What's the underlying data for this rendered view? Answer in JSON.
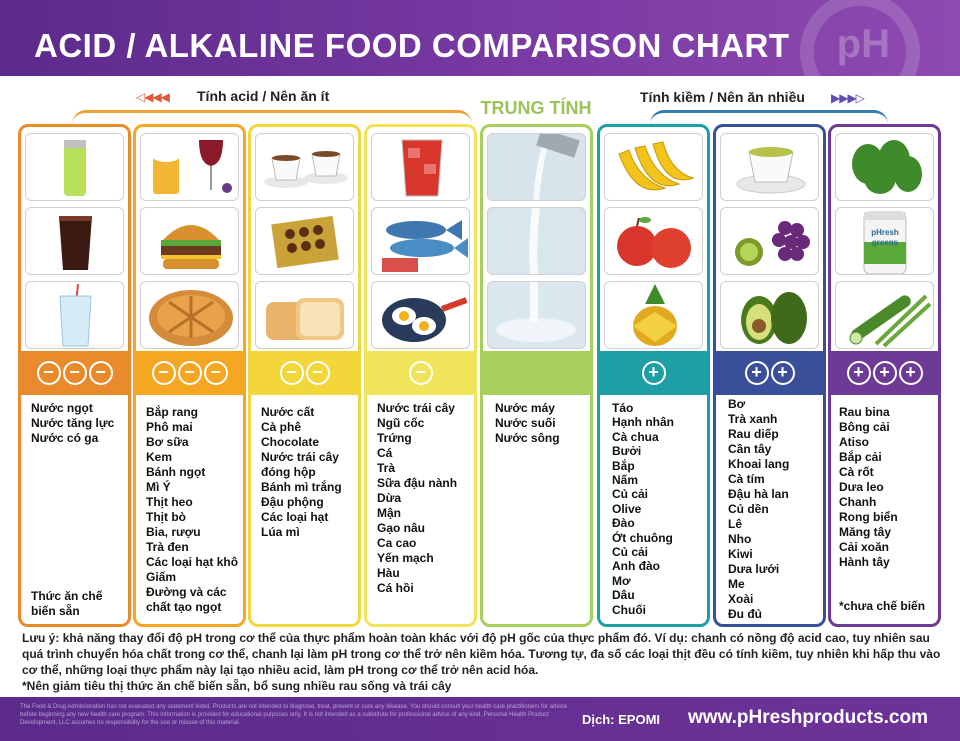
{
  "header": {
    "title": "ACID / ALKALINE FOOD COMPARISON CHART"
  },
  "groups": {
    "acid": {
      "label": "Tính acid / Nên ăn ít",
      "arrows": "◁◀◀◀"
    },
    "neutral": {
      "label": "TRUNG TÍNH"
    },
    "alkaline": {
      "label": "Tính kiềm / Nên ăn nhiều",
      "arrows": "▶▶▶▷"
    }
  },
  "colors": {
    "col1": "#e98a2b",
    "col2": "#f5a623",
    "col3": "#f2d63a",
    "col4": "#f0e45a",
    "col5": "#a6cf5c",
    "col6": "#1d9fa5",
    "col7": "#3a4f9a",
    "col8": "#6d3a96"
  },
  "columns": [
    {
      "sign": "−",
      "sign_count": 3,
      "images": [
        "energy-drink-can",
        "cola-glass",
        "soda-glass"
      ],
      "items": [
        "Nước ngọt",
        "Nước tăng lực",
        "Nước có ga"
      ],
      "footnote": "Thức ăn chế biến sẵn"
    },
    {
      "sign": "−",
      "sign_count": 3,
      "images": [
        "beer-and-wine",
        "hamburger",
        "pie"
      ],
      "items": [
        "Bắp rang",
        "Phô mai",
        "Bơ sữa",
        "Kem",
        "Bánh ngọt",
        "Mì Ý",
        "Thịt heo",
        "Thịt bò",
        "Bia, rượu",
        "Trà đen",
        "Các loại hạt khô",
        "Giấm",
        "Đường và các chất tạo ngọt"
      ]
    },
    {
      "sign": "−",
      "sign_count": 2,
      "images": [
        "coffee-cups",
        "chocolate-box",
        "bread-loaves"
      ],
      "items": [
        "Nước cất",
        "Cà phê",
        "Chocolate",
        "Nước trái cây đóng hộp",
        "Bánh mì trắng",
        "Đậu phộng",
        "Các loại hạt",
        "Lúa mì"
      ]
    },
    {
      "sign": "−",
      "sign_count": 1,
      "images": [
        "iced-tea",
        "fish",
        "fried-eggs"
      ],
      "items": [
        "Nước trái cây",
        "Ngũ cốc",
        "Trứng",
        "Cá",
        "Trà",
        "Sữa đậu nành",
        "Dừa",
        "Mận",
        "Gạo nâu",
        "Ca cao",
        "Yến mạch",
        "Hàu",
        "Cá hồi"
      ]
    },
    {
      "sign": "",
      "sign_count": 0,
      "images": [
        "water-pour-1",
        "water-pour-2",
        "water-pour-3"
      ],
      "items": [
        "Nước máy",
        "Nước suối",
        "Nước sông"
      ]
    },
    {
      "sign": "+",
      "sign_count": 1,
      "images": [
        "bananas",
        "apples",
        "pineapple"
      ],
      "items": [
        "Táo",
        "Hạnh nhân",
        "Cà chua",
        "Bưởi",
        "Bắp",
        "Nấm",
        "Củ cải",
        "Olive",
        "Đào",
        "Ớt chuông",
        "Củ cải",
        "Anh đào",
        "Mơ",
        "Dâu",
        "Chuối"
      ]
    },
    {
      "sign": "+",
      "sign_count": 2,
      "images": [
        "green-tea",
        "kiwi-grapes",
        "avocado"
      ],
      "items": [
        "Bơ",
        "Trà xanh",
        "Rau diếp",
        "Cần tây",
        "Khoai lang",
        "Cà tím",
        "Đậu hà lan",
        "Củ dền",
        "Lê",
        "Nho",
        "Kiwi",
        "Dưa lưới",
        "Me",
        "Xoài",
        "Đu đủ"
      ]
    },
    {
      "sign": "+",
      "sign_count": 3,
      "images": [
        "spinach",
        "phresh-greens-jar",
        "cucumber-asparagus"
      ],
      "items": [
        "Rau bina",
        "Bông cải",
        "Atiso",
        "Bắp cải",
        "Cà rốt",
        "Dưa leo",
        "Chanh",
        "Rong biển",
        "Măng tây",
        "Cải xoăn",
        "Hành tây"
      ],
      "footnote": "*chưa chế biến"
    }
  ],
  "jar_label": "pHresh greens",
  "note": {
    "line1": "Lưu ý: khả năng thay đổi độ pH trong cơ thể của thực phẩm hoàn toàn khác với độ pH gốc của thực phẩm đó. Ví dụ: chanh có nồng độ acid cao, tuy nhiên sau quá trình chuyển hóa chất trong cơ thể, chanh lại làm pH trong cơ thể trở nên kiềm hóa. Tương tự, đa số các loại thịt đều có tính kiềm, tuy nhiên khi hấp thu vào cơ thể, những loại thực phẩm này lại tạo nhiều acid, làm pH trong cơ thể trở nên acid hóa.",
    "line2": "*Nên giảm tiêu thị thức ăn chế biến sẵn, bổ sung nhiều rau sống và trái cây"
  },
  "footer": {
    "disclaimer": "The Food & Drug Administration has not evaluated any statement listed. Products are not intended to diagnose, treat, prevent or cure any disease. You should consult your health care practitioners for advice before beginning any new health care program. This information is provided for educational purposes only. It is not intended as a substitute for professional advice of any kind. Personal Health Product Development, LLC assumes no responsibility for the use or misuse of this material.",
    "translator": "Dịch: EPOMI",
    "website": "www.pHreshproducts.com"
  },
  "logo_text": "pH"
}
